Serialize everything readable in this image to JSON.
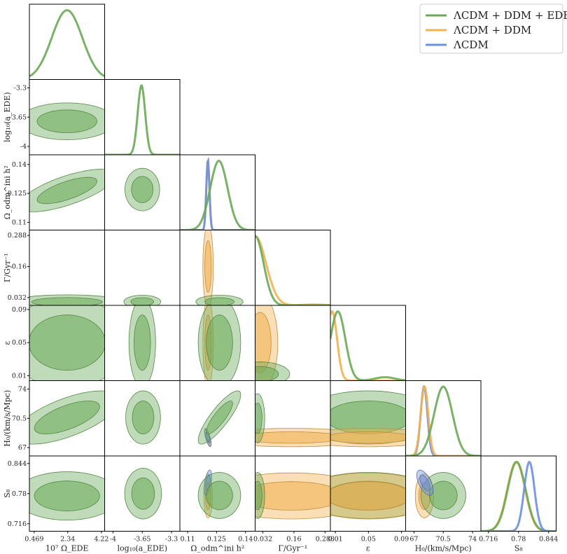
{
  "chart_data": {
    "type": "triangle-plot",
    "parameters": [
      {
        "id": "b",
        "label": "10⁷ Ω_EDE",
        "range": [
          0.2,
          4.4
        ],
        "ticks": [
          0.469,
          2.34,
          4.22
        ],
        "tick_labels": [
          "0.469",
          "2.34",
          "4.22"
        ]
      },
      {
        "id": "a",
        "label": "log₁₀(a_EDE)",
        "range": [
          -4.1,
          -3.2
        ],
        "ticks": [
          -4,
          -3.65,
          -3.3
        ],
        "tick_labels": [
          "-4",
          "-3.65",
          "-3.3"
        ]
      },
      {
        "id": "o",
        "label": "Ω_odm^ini h²",
        "range": [
          0.106,
          0.145
        ],
        "ticks": [
          0.11,
          0.125,
          0.14
        ],
        "tick_labels": [
          "0.11",
          "0.125",
          "0.14"
        ]
      },
      {
        "id": "g",
        "label": "Γ/Gyr⁻¹",
        "range": [
          0.0,
          0.31
        ],
        "ticks": [
          0.032,
          0.16,
          0.288
        ],
        "tick_labels": [
          "0.032",
          "0.16",
          "0.288"
        ]
      },
      {
        "id": "e",
        "label": "ε",
        "range": [
          0.004,
          0.095
        ],
        "ticks": [
          0.01,
          0.05,
          0.09
        ],
        "tick_labels": [
          "0.01",
          "0.05",
          "0.09"
        ]
      },
      {
        "id": "h",
        "label": "H₀/(km/s/Mpc)",
        "range": [
          66,
          75
        ],
        "ticks": [
          67,
          70.5,
          74
        ],
        "tick_labels": [
          "67",
          "70.5",
          "74"
        ]
      },
      {
        "id": "s",
        "label": "S₈",
        "range": [
          0.7,
          0.86
        ],
        "ticks": [
          0.716,
          0.78,
          0.844
        ],
        "tick_labels": [
          "0.716",
          "0.78",
          "0.844"
        ]
      }
    ],
    "series": [
      {
        "name": "ΛCDM + DDM + EDE",
        "color": "#6aaa57"
      },
      {
        "name": "ΛCDM + DDM",
        "color": "#f3b14f"
      },
      {
        "name": "ΛCDM",
        "color": "#6c8fe0"
      }
    ],
    "legend": "top-right",
    "marginals": [
      {
        "param": "b",
        "curves": [
          {
            "series": 0,
            "mu": 2.3,
            "sd": 0.85
          }
        ]
      },
      {
        "param": "a",
        "curves": [
          {
            "series": 0,
            "mu": -3.66,
            "sd": 0.045
          }
        ]
      },
      {
        "param": "o",
        "curves": [
          {
            "series": 1,
            "mu": 0.1205,
            "sd": 0.0008
          },
          {
            "series": 2,
            "mu": 0.1205,
            "sd": 0.0008
          },
          {
            "series": 0,
            "mu": 0.1262,
            "sd": 0.0045
          }
        ]
      },
      {
        "param": "g",
        "curves": [
          {
            "series": 1,
            "mu": 0.0,
            "sd": 0.045,
            "tail": [
              0.24,
              0.045,
              0.012
            ]
          },
          {
            "series": 0,
            "mu": 0.0,
            "sd": 0.035
          }
        ]
      },
      {
        "param": "e",
        "curves": [
          {
            "series": 1,
            "mu": 0.006,
            "sd": 0.006
          },
          {
            "series": 0,
            "mu": 0.013,
            "sd": 0.009,
            "tail": [
              0.07,
              0.012,
              0.05
            ]
          }
        ]
      },
      {
        "param": "h",
        "curves": [
          {
            "series": 2,
            "mu": 68.2,
            "sd": 0.4
          },
          {
            "series": 1,
            "mu": 68.25,
            "sd": 0.45
          },
          {
            "series": 0,
            "mu": 70.5,
            "sd": 1.1
          }
        ]
      },
      {
        "param": "s",
        "curves": [
          {
            "series": 1,
            "mu": 0.775,
            "sd": 0.019
          },
          {
            "series": 0,
            "mu": 0.776,
            "sd": 0.019
          },
          {
            "series": 2,
            "mu": 0.803,
            "sd": 0.011
          }
        ]
      }
    ],
    "joint": [
      {
        "x": "b",
        "y": "a",
        "contours": [
          {
            "series": 0,
            "cx": 2.3,
            "cy": -3.7,
            "sx": 1.1,
            "sy": 0.09,
            "rho": 0.0
          }
        ]
      },
      {
        "x": "b",
        "y": "o",
        "contours": [
          {
            "series": 0,
            "cx": 2.3,
            "cy": 0.1265,
            "sx": 1.1,
            "sy": 0.0045,
            "rho": 0.7
          }
        ]
      },
      {
        "x": "b",
        "y": "g",
        "contours": [
          {
            "series": 0,
            "cx": 2.3,
            "cy": 0.014,
            "sx": 1.3,
            "sy": 0.012,
            "rho": 0.0
          }
        ]
      },
      {
        "x": "b",
        "y": "e",
        "contours": [
          {
            "series": 0,
            "cx": 2.3,
            "cy": 0.05,
            "sx": 1.4,
            "sy": 0.022,
            "rho": 0.0
          }
        ]
      },
      {
        "x": "b",
        "y": "h",
        "contours": [
          {
            "series": 0,
            "cx": 2.3,
            "cy": 70.6,
            "sx": 1.2,
            "sy": 1.3,
            "rho": 0.65
          }
        ]
      },
      {
        "x": "b",
        "y": "s",
        "contours": [
          {
            "series": 0,
            "cx": 2.3,
            "cy": 0.775,
            "sx": 1.2,
            "sy": 0.021,
            "rho": 0.0
          }
        ]
      },
      {
        "x": "a",
        "y": "o",
        "contours": [
          {
            "series": 0,
            "cx": -3.65,
            "cy": 0.127,
            "sx": 0.085,
            "sy": 0.0045,
            "rho": 0.0
          }
        ]
      },
      {
        "x": "a",
        "y": "g",
        "contours": [
          {
            "series": 0,
            "cx": -3.65,
            "cy": 0.015,
            "sx": 0.09,
            "sy": 0.011,
            "rho": 0.0
          }
        ]
      },
      {
        "x": "a",
        "y": "e",
        "contours": [
          {
            "series": 0,
            "cx": -3.65,
            "cy": 0.05,
            "sx": 0.065,
            "sy": 0.022,
            "rho": 0.0
          }
        ]
      },
      {
        "x": "a",
        "y": "h",
        "contours": [
          {
            "series": 0,
            "cx": -3.64,
            "cy": 70.6,
            "sx": 0.085,
            "sy": 1.3,
            "rho": 0.0
          }
        ]
      },
      {
        "x": "a",
        "y": "s",
        "contours": [
          {
            "series": 0,
            "cx": -3.64,
            "cy": 0.78,
            "sx": 0.09,
            "sy": 0.022,
            "rho": 0.0
          }
        ]
      },
      {
        "x": "o",
        "y": "g",
        "contours": [
          {
            "series": 1,
            "cx": 0.1206,
            "cy": 0.16,
            "sx": 0.0011,
            "sy": 0.07,
            "rho": 0.0
          },
          {
            "series": 0,
            "cx": 0.1265,
            "cy": 0.015,
            "sx": 0.005,
            "sy": 0.011,
            "rho": 0.0
          }
        ]
      },
      {
        "x": "o",
        "y": "e",
        "contours": [
          {
            "series": 1,
            "cx": 0.1206,
            "cy": 0.05,
            "sx": 0.0011,
            "sy": 0.022,
            "rho": 0.0
          },
          {
            "series": 0,
            "cx": 0.1265,
            "cy": 0.05,
            "sx": 0.0045,
            "sy": 0.022,
            "rho": 0.0
          }
        ]
      },
      {
        "x": "o",
        "y": "h",
        "contours": [
          {
            "series": 1,
            "cx": 0.1205,
            "cy": 68.2,
            "sx": 0.0007,
            "sy": 0.45,
            "rho": -0.7
          },
          {
            "series": 2,
            "cx": 0.1205,
            "cy": 68.2,
            "sx": 0.0007,
            "sy": 0.42,
            "rho": -0.7
          },
          {
            "series": 0,
            "cx": 0.1265,
            "cy": 70.6,
            "sx": 0.0045,
            "sy": 1.3,
            "rho": 0.85
          }
        ]
      },
      {
        "x": "o",
        "y": "s",
        "contours": [
          {
            "series": 1,
            "cx": 0.1206,
            "cy": 0.775,
            "sx": 0.0009,
            "sy": 0.019,
            "rho": 0.0
          },
          {
            "series": 2,
            "cx": 0.1205,
            "cy": 0.803,
            "sx": 0.0008,
            "sy": 0.011,
            "rho": 0.5
          },
          {
            "series": 0,
            "cx": 0.1265,
            "cy": 0.776,
            "sx": 0.0045,
            "sy": 0.02,
            "rho": 0.0
          }
        ]
      },
      {
        "x": "g",
        "y": "e",
        "contours": [
          {
            "series": 1,
            "cx": 0.02,
            "cy": 0.05,
            "sx": 0.03,
            "sy": 0.024,
            "rho": 0.0
          },
          {
            "series": 0,
            "cx": 0.02,
            "cy": 0.012,
            "sx": 0.05,
            "sy": 0.006,
            "rho": 0.0
          }
        ]
      },
      {
        "x": "g",
        "y": "h",
        "contours": [
          {
            "series": 1,
            "cx": 0.15,
            "cy": 68.2,
            "sx": 0.14,
            "sy": 0.45,
            "rho": 0.0
          },
          {
            "series": 0,
            "cx": 0.01,
            "cy": 70.5,
            "sx": 0.012,
            "sy": 1.2,
            "rho": 0.0
          }
        ]
      },
      {
        "x": "g",
        "y": "s",
        "contours": [
          {
            "series": 1,
            "cx": 0.15,
            "cy": 0.775,
            "sx": 0.14,
            "sy": 0.02,
            "rho": 0.0
          },
          {
            "series": 0,
            "cx": 0.01,
            "cy": 0.776,
            "sx": 0.012,
            "sy": 0.02,
            "rho": 0.0
          }
        ]
      },
      {
        "x": "e",
        "y": "h",
        "contours": [
          {
            "series": 0,
            "cx": 0.05,
            "cy": 70.6,
            "sx": 0.034,
            "sy": 1.3,
            "rho": 0.0
          },
          {
            "series": 1,
            "cx": 0.05,
            "cy": 68.2,
            "sx": 0.034,
            "sy": 0.45,
            "rho": 0.0
          }
        ]
      },
      {
        "x": "e",
        "y": "s",
        "contours": [
          {
            "series": 0,
            "cx": 0.05,
            "cy": 0.776,
            "sx": 0.034,
            "sy": 0.02,
            "rho": 0.0
          },
          {
            "series": 1,
            "cx": 0.05,
            "cy": 0.775,
            "sx": 0.034,
            "sy": 0.02,
            "rho": 0.0
          }
        ]
      },
      {
        "x": "h",
        "y": "s",
        "contours": [
          {
            "series": 1,
            "cx": 68.25,
            "cy": 0.775,
            "sx": 0.45,
            "sy": 0.019,
            "rho": 0.0
          },
          {
            "series": 0,
            "cx": 70.5,
            "cy": 0.776,
            "sx": 1.1,
            "sy": 0.02,
            "rho": 0.0
          },
          {
            "series": 2,
            "cx": 68.3,
            "cy": 0.803,
            "sx": 0.4,
            "sy": 0.011,
            "rho": -0.6
          }
        ]
      }
    ]
  }
}
